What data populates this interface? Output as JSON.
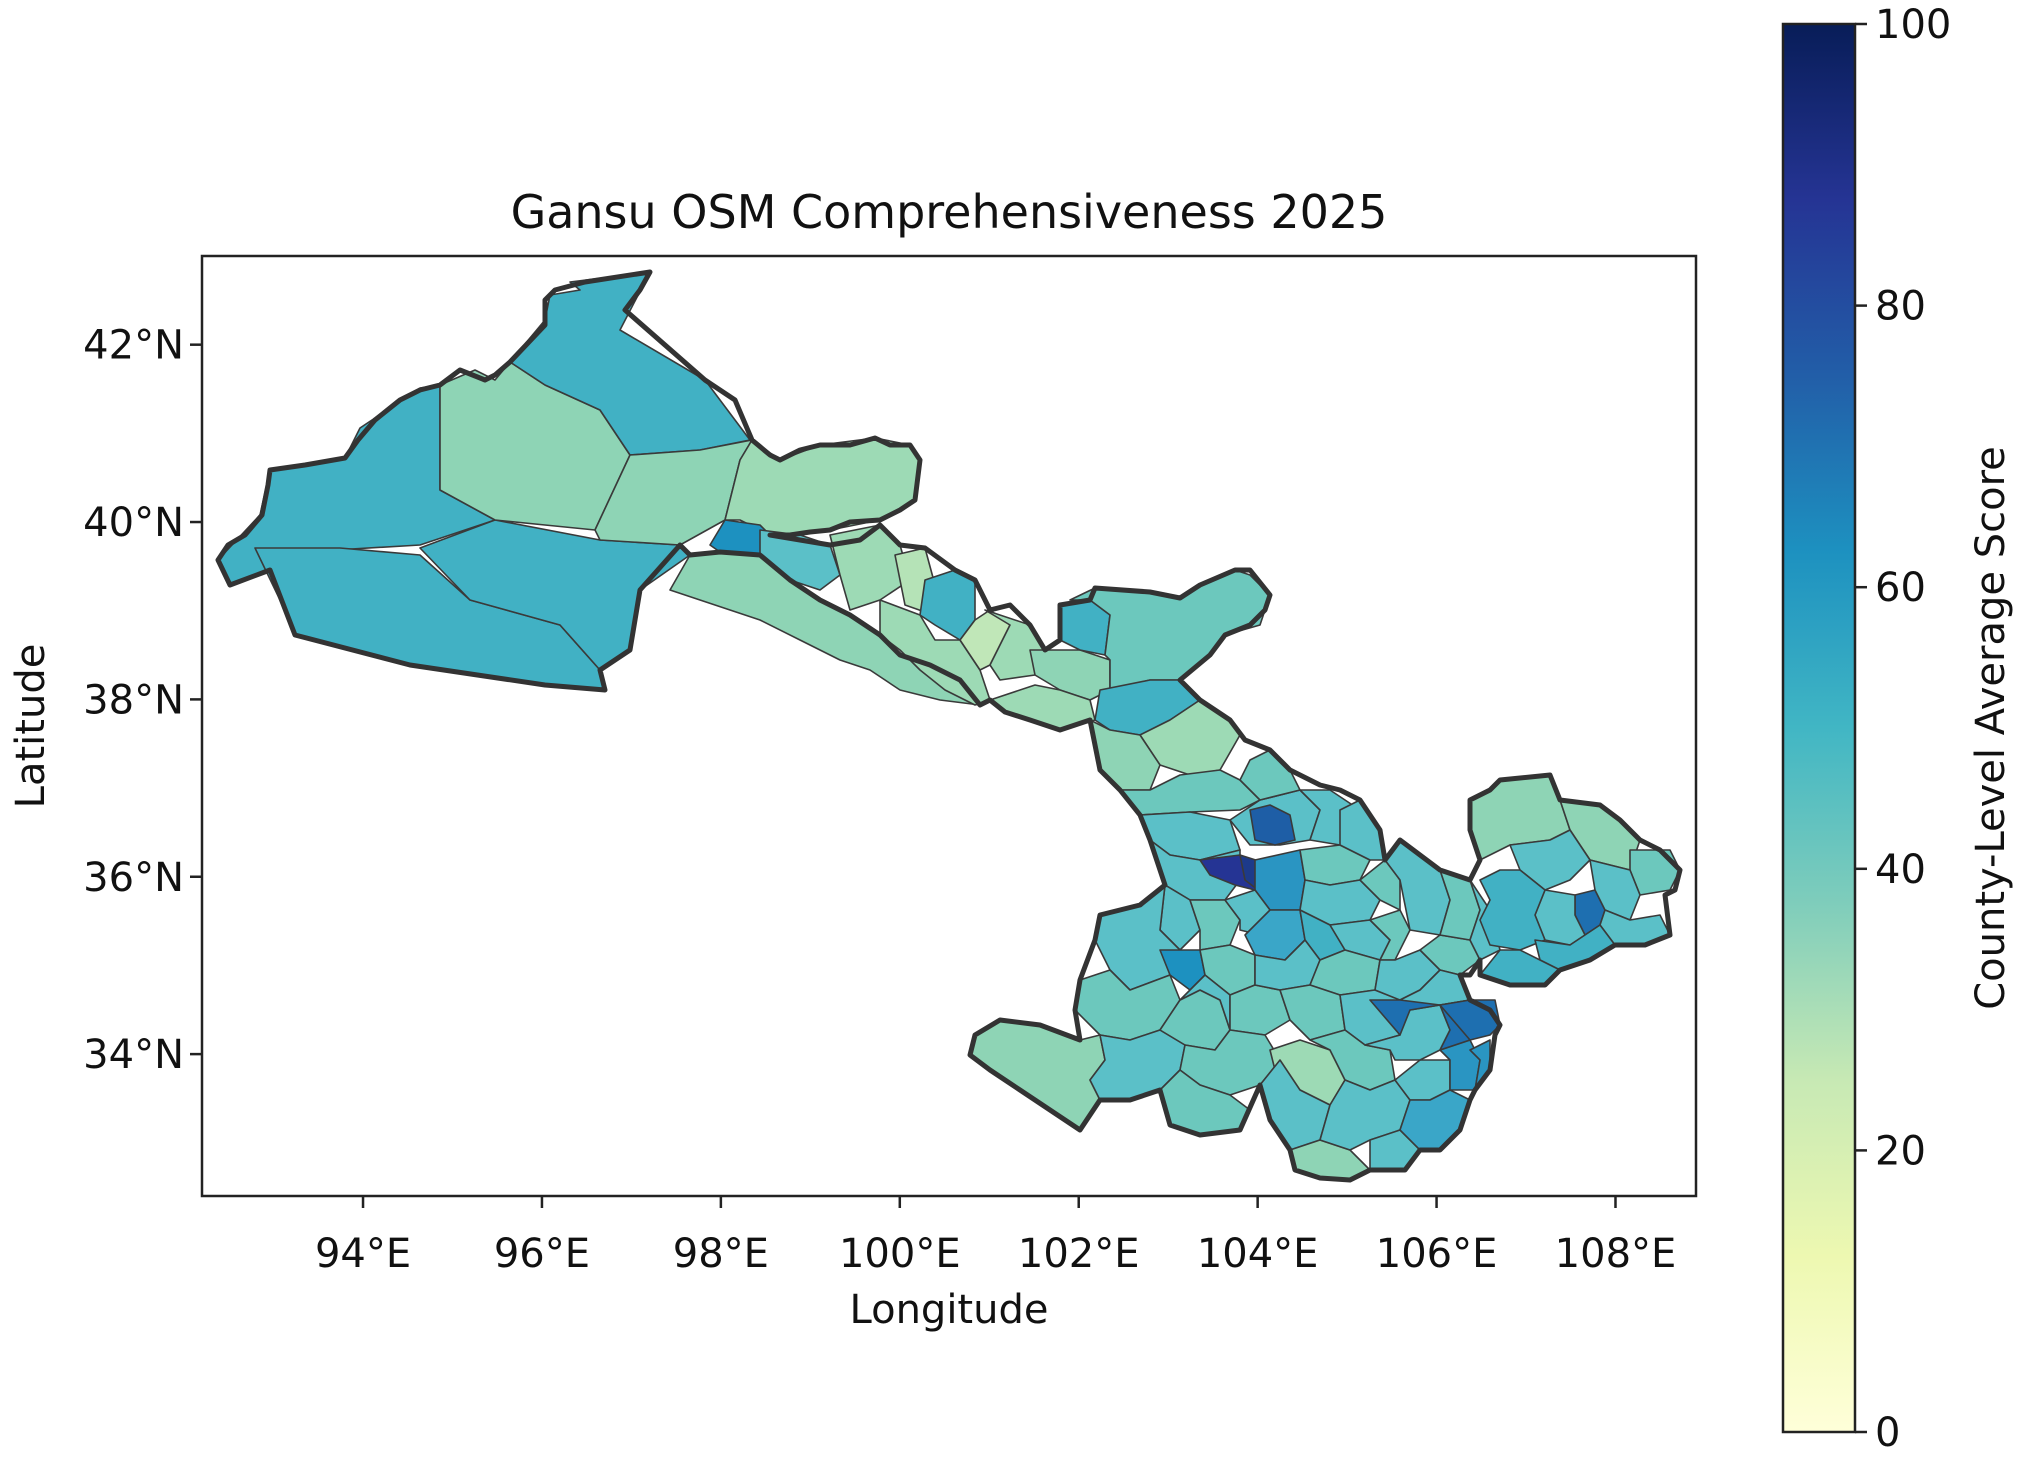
{
  "map": {
    "title": "Gansu OSM Comprehensiveness 2025",
    "xlabel": "Longitude",
    "ylabel": "Latitude",
    "lon_range": [
      92.2,
      108.9
    ],
    "lat_range": [
      32.4,
      43.0
    ],
    "x_ticks": [
      "94°E",
      "96°E",
      "98°E",
      "100°E",
      "102°E",
      "104°E",
      "106°E",
      "108°E"
    ],
    "y_ticks": [
      "34°N",
      "36°N",
      "38°N",
      "40°N",
      "42°N"
    ],
    "colormap": "YlGnBu"
  },
  "colorbar": {
    "label": "County-Level Average Score",
    "range": [
      0,
      100
    ],
    "ticks": [
      "0",
      "20",
      "40",
      "60",
      "80",
      "100"
    ],
    "stops": [
      "#ffffd9",
      "#edf8b1",
      "#c7e9b4",
      "#7fcdbb",
      "#41b6c4",
      "#1d91c0",
      "#225ea8",
      "#253494",
      "#081d58"
    ]
  }
}
